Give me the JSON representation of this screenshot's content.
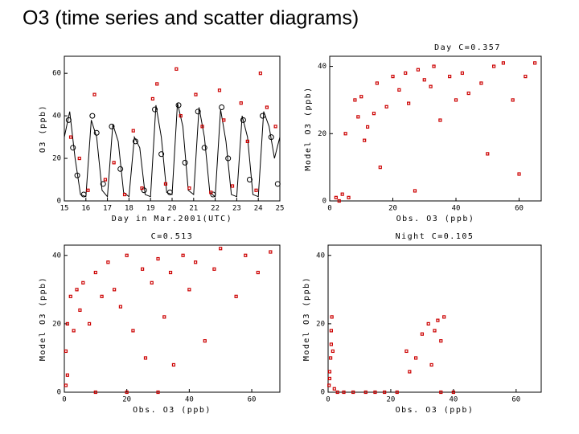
{
  "title": "O3 (time series and scatter diagrams)",
  "chart_data": [
    {
      "type": "line",
      "x_label": "Day in Mar.2001(UTC)",
      "y_label": "O3 (ppb)",
      "xlim": [
        15,
        25
      ],
      "ylim": [
        0,
        68
      ],
      "xticks": [
        15,
        16,
        17,
        18,
        19,
        20,
        21,
        22,
        23,
        24,
        25
      ],
      "yticks": [
        0,
        20,
        40,
        60
      ],
      "series": [
        {
          "style": "line",
          "color": "#000000",
          "x": [
            15,
            15.25,
            15.5,
            15.75,
            16,
            16.25,
            16.5,
            16.75,
            17,
            17.25,
            17.5,
            17.75,
            18,
            18.25,
            18.5,
            18.75,
            19,
            19.25,
            19.5,
            19.75,
            20,
            20.25,
            20.5,
            20.75,
            21,
            21.25,
            21.5,
            21.75,
            22,
            22.25,
            22.5,
            22.75,
            23,
            23.25,
            23.5,
            23.75,
            24,
            24.25,
            24.5,
            24.75,
            25
          ],
          "values": [
            30,
            42,
            20,
            3,
            2,
            38,
            30,
            5,
            2,
            36,
            28,
            4,
            2,
            30,
            25,
            3,
            2,
            45,
            30,
            4,
            3,
            46,
            35,
            5,
            3,
            44,
            30,
            4,
            2,
            43,
            28,
            3,
            2,
            40,
            30,
            3,
            2,
            42,
            35,
            20,
            30
          ]
        },
        {
          "style": "open-circle",
          "color": "#000000",
          "x": [
            15.2,
            15.4,
            15.6,
            15.9,
            16.3,
            16.5,
            16.8,
            17.2,
            17.6,
            18.3,
            18.7,
            19.2,
            19.5,
            19.9,
            20.3,
            20.6,
            21.2,
            21.5,
            21.9,
            22.3,
            22.6,
            23.3,
            23.6,
            24.2,
            24.6,
            24.9
          ],
          "values": [
            38,
            25,
            12,
            3,
            40,
            32,
            8,
            35,
            15,
            28,
            5,
            43,
            22,
            4,
            45,
            18,
            42,
            25,
            3,
            44,
            20,
            38,
            10,
            40,
            30,
            8
          ]
        },
        {
          "style": "dot",
          "color": "#cc0000",
          "x": [
            15.3,
            15.7,
            16.1,
            16.4,
            16.9,
            17.3,
            17.8,
            18.2,
            18.6,
            19.1,
            19.3,
            19.7,
            20.2,
            20.4,
            20.8,
            21.1,
            21.4,
            21.8,
            22.2,
            22.4,
            22.8,
            23.2,
            23.5,
            23.9,
            24.1,
            24.4,
            24.8
          ],
          "values": [
            30,
            20,
            5,
            50,
            10,
            18,
            3,
            33,
            6,
            48,
            55,
            8,
            62,
            40,
            6,
            50,
            35,
            4,
            52,
            38,
            7,
            46,
            28,
            5,
            60,
            44,
            35
          ]
        }
      ]
    },
    {
      "type": "scatter",
      "title": "Day C=0.357",
      "x_label": "Obs. O3 (ppb)",
      "y_label": "Model O3 (ppb)",
      "xlim": [
        0,
        67
      ],
      "ylim": [
        0,
        43
      ],
      "xticks": [
        0,
        20,
        40,
        60
      ],
      "yticks": [
        0,
        20,
        40
      ],
      "series": [
        {
          "style": "dot",
          "color": "#cc0000",
          "x": [
            2,
            4,
            5,
            8,
            9,
            10,
            12,
            14,
            15,
            16,
            18,
            20,
            22,
            24,
            25,
            27,
            28,
            30,
            32,
            33,
            35,
            38,
            40,
            42,
            44,
            48,
            50,
            52,
            55,
            58,
            60,
            62,
            65,
            3,
            6,
            11
          ],
          "values": [
            1,
            2,
            20,
            30,
            25,
            31,
            22,
            26,
            35,
            10,
            28,
            37,
            33,
            38,
            29,
            3,
            39,
            36,
            34,
            40,
            24,
            37,
            30,
            38,
            32,
            35,
            14,
            40,
            41,
            30,
            8,
            37,
            41,
            0,
            1,
            18
          ]
        }
      ]
    },
    {
      "type": "scatter",
      "title": "C=0.513",
      "x_label": "Obs. O3 (ppb)",
      "y_label": "Model O3 (ppb)",
      "xlim": [
        0,
        69
      ],
      "ylim": [
        0,
        43
      ],
      "xticks": [
        0,
        20,
        40,
        60
      ],
      "yticks": [
        0,
        20,
        40
      ],
      "series": [
        {
          "style": "dot",
          "color": "#cc0000",
          "x": [
            0.5,
            0.5,
            1,
            1,
            2,
            3,
            4,
            5,
            6,
            8,
            10,
            12,
            14,
            16,
            18,
            20,
            22,
            25,
            26,
            28,
            30,
            32,
            34,
            35,
            38,
            40,
            42,
            45,
            48,
            50,
            55,
            58,
            62,
            66,
            10,
            20,
            30
          ],
          "values": [
            2,
            12,
            5,
            20,
            28,
            18,
            30,
            24,
            32,
            20,
            35,
            28,
            38,
            30,
            25,
            40,
            18,
            36,
            10,
            32,
            39,
            22,
            35,
            8,
            40,
            30,
            38,
            15,
            36,
            42,
            28,
            40,
            35,
            41,
            0,
            0,
            0
          ]
        }
      ]
    },
    {
      "type": "scatter",
      "title": "Night C=0.105",
      "x_label": "Obs. O3 (ppb)",
      "y_label": "Model O3 (ppb)",
      "xlim": [
        0,
        68
      ],
      "ylim": [
        0,
        43
      ],
      "xticks": [
        0,
        20,
        40,
        60
      ],
      "yticks": [
        0,
        20,
        40
      ],
      "series": [
        {
          "style": "dot",
          "color": "#cc0000",
          "x": [
            0.3,
            0.5,
            0.8,
            1,
            1,
            1.2,
            1.5,
            0.5,
            2,
            3,
            5,
            8,
            12,
            15,
            18,
            22,
            25,
            26,
            28,
            30,
            32,
            33,
            34,
            35,
            36,
            37,
            36,
            40
          ],
          "values": [
            2,
            6,
            10,
            14,
            18,
            22,
            12,
            4,
            1,
            0,
            0,
            0,
            0,
            0,
            0,
            0,
            12,
            6,
            10,
            17,
            20,
            8,
            18,
            21,
            0,
            22,
            15,
            0
          ]
        }
      ]
    }
  ]
}
